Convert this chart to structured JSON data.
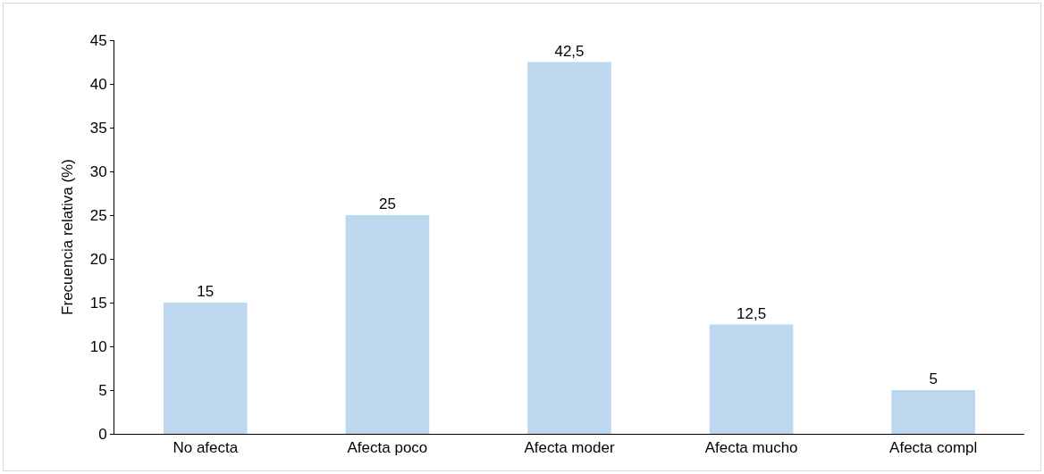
{
  "chart_data": {
    "type": "bar",
    "ylabel": "Frecuencia relativa (%)",
    "categories": [
      "No afecta",
      "Afecta poco",
      "Afecta moder",
      "Afecta mucho",
      "Afecta compl"
    ],
    "values": [
      15,
      25,
      42.5,
      12.5,
      5
    ],
    "value_labels": [
      "15",
      "25",
      "42,5",
      "12,5",
      "5"
    ],
    "color": "#bdd7ee",
    "ylim": [
      0,
      45
    ],
    "yticks": [
      0,
      5,
      10,
      15,
      20,
      25,
      30,
      35,
      40,
      45
    ],
    "grid": false
  }
}
